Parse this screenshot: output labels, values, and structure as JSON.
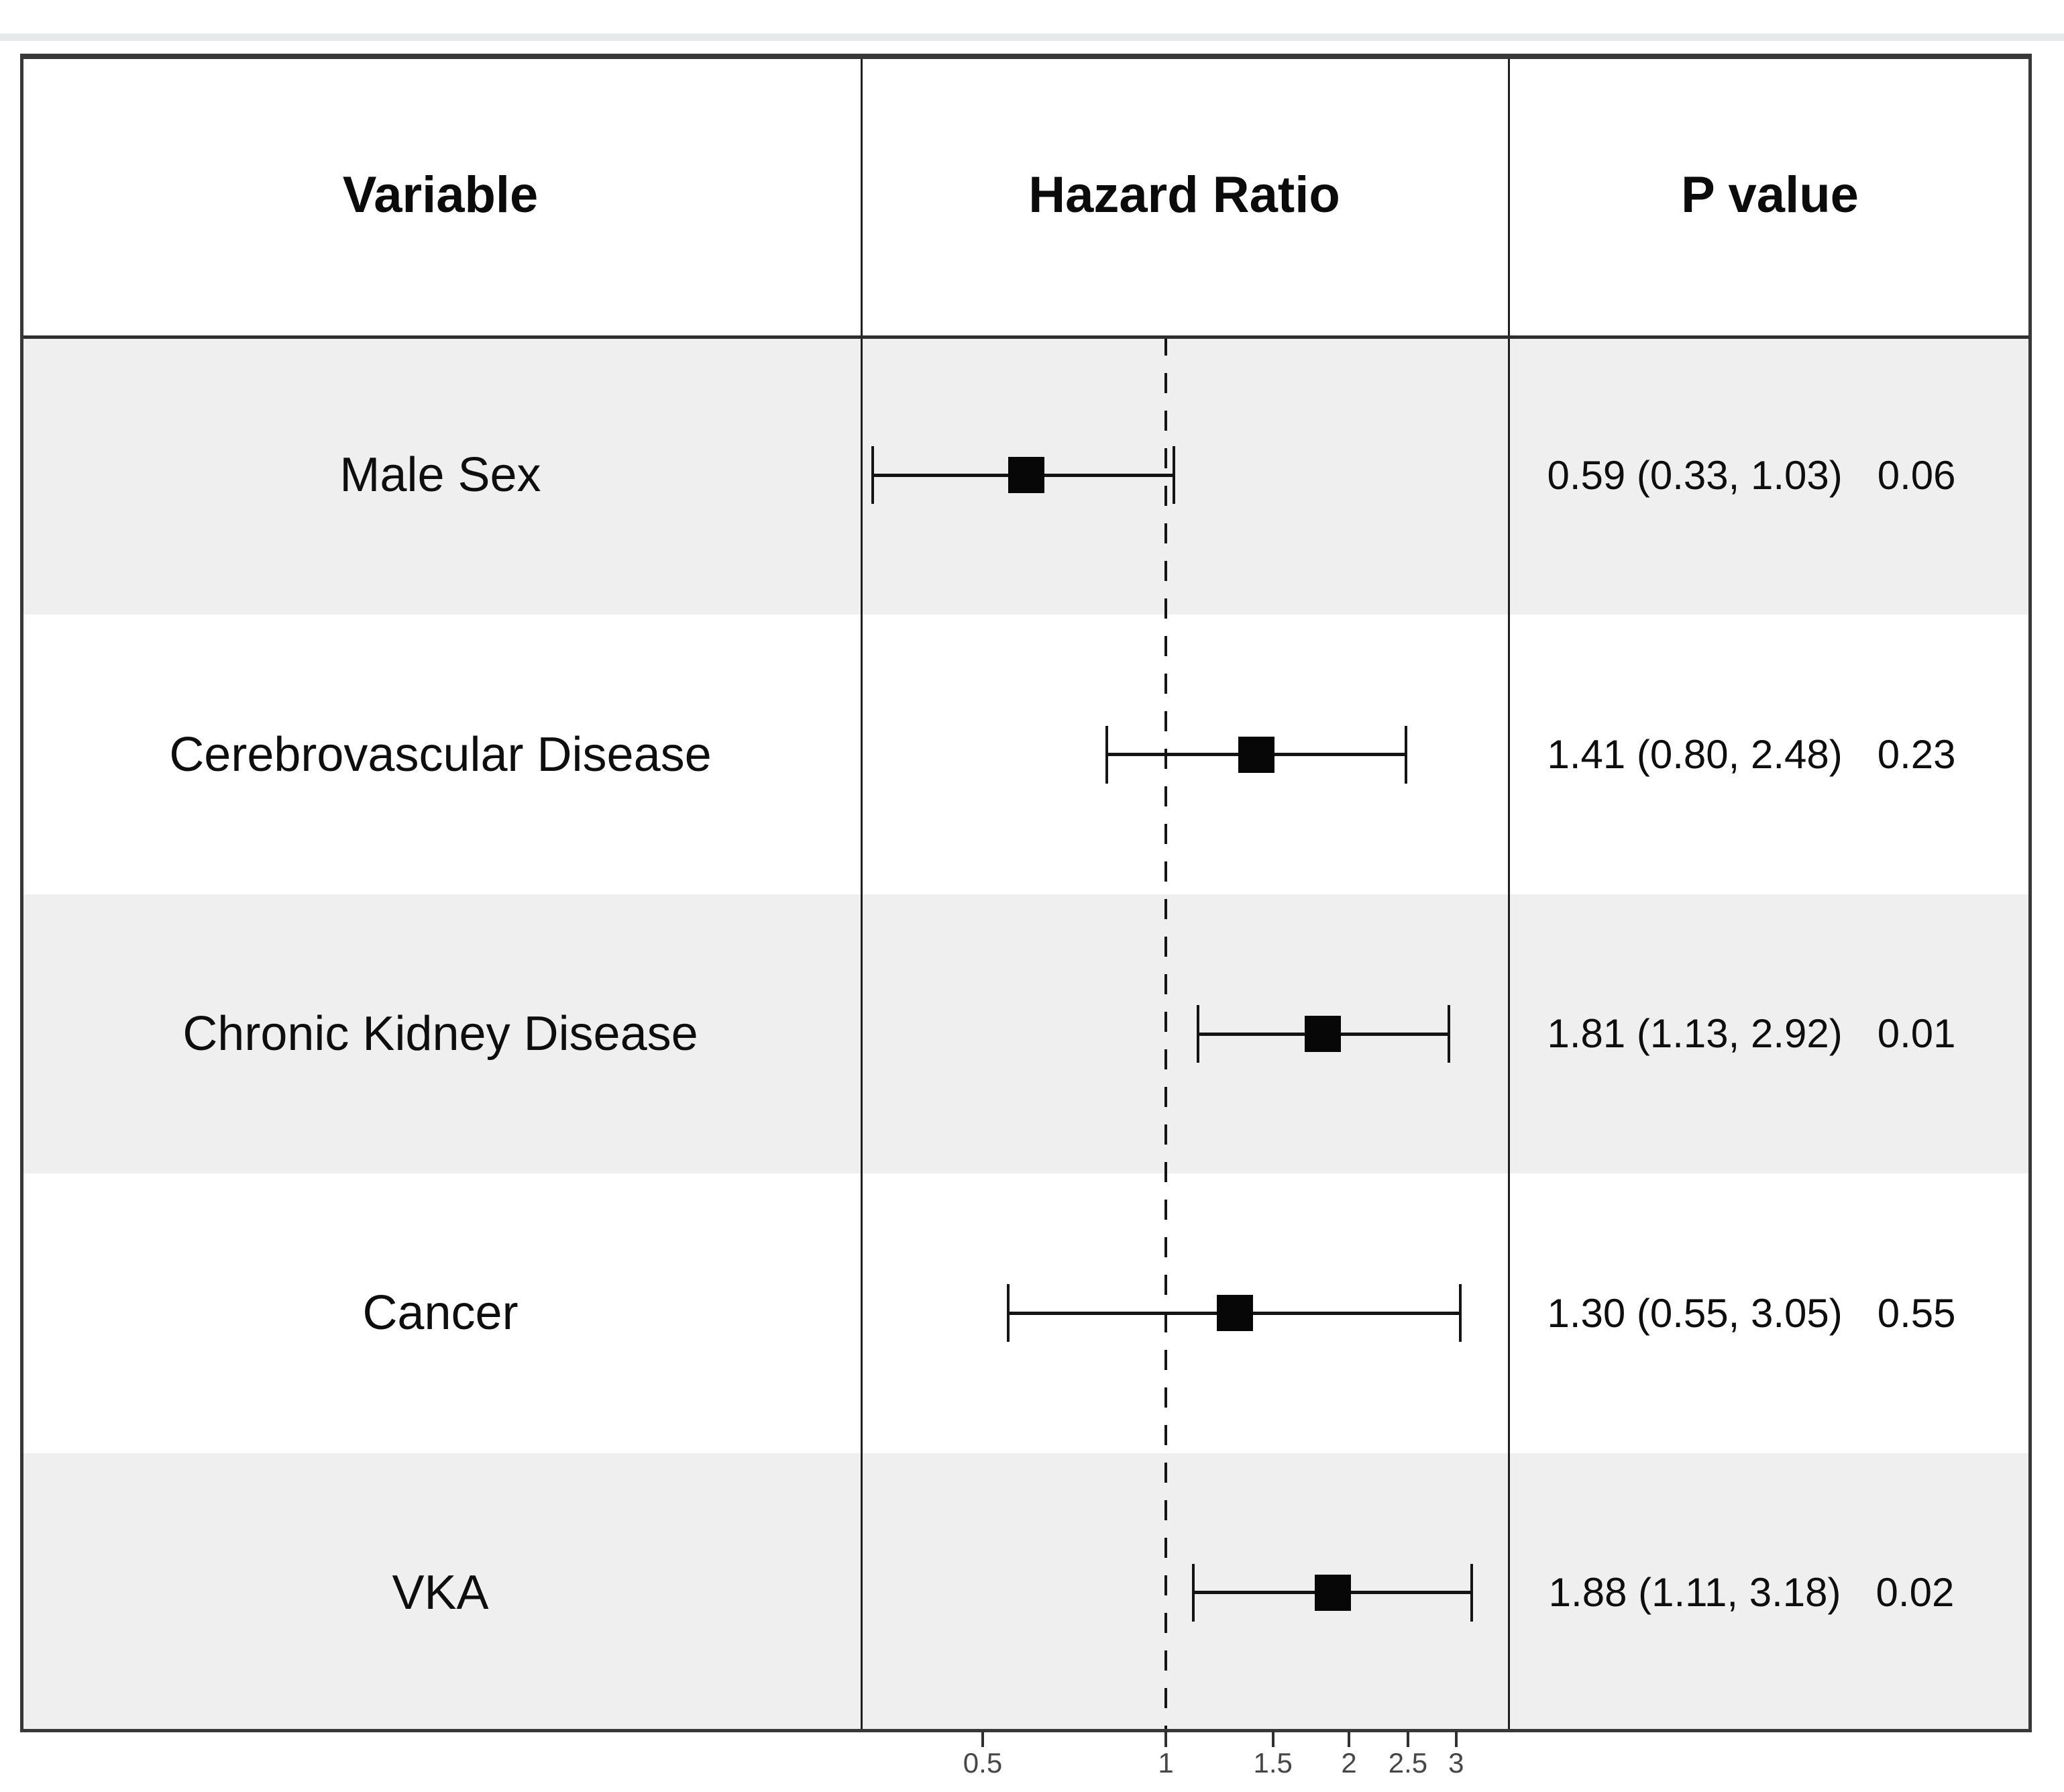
{
  "page": {
    "top_strip_color": "#e6e9e9",
    "background": "#ffffff"
  },
  "table": {
    "headers": [
      {
        "label": "Variable"
      },
      {
        "label": "Hazard Ratio"
      },
      {
        "label": "P value"
      }
    ],
    "stripe_color": "#efefef",
    "border_color": "#383838",
    "marker_color": "#070707"
  },
  "chart_data": {
    "type": "forest",
    "x_scale": "log",
    "x_domain": [
      0.315,
      3.65
    ],
    "x_ticks": [
      "0.5",
      "1",
      "1.5",
      "2",
      "2.5",
      "3"
    ],
    "reference_line": 1,
    "columns": [
      "Variable",
      "Hazard Ratio",
      "P value"
    ],
    "rows": [
      {
        "variable": "Male Sex",
        "hr": 0.59,
        "ci_low": 0.33,
        "ci_high": 1.03,
        "estimate_label": "0.59 (0.33, 1.03)",
        "p": "0.06"
      },
      {
        "variable": "Cerebrovascular Disease",
        "hr": 1.41,
        "ci_low": 0.8,
        "ci_high": 2.48,
        "estimate_label": "1.41 (0.80, 2.48)",
        "p": "0.23"
      },
      {
        "variable": "Chronic Kidney Disease",
        "hr": 1.81,
        "ci_low": 1.13,
        "ci_high": 2.92,
        "estimate_label": "1.81 (1.13, 2.92)",
        "p": "0.01"
      },
      {
        "variable": "Cancer",
        "hr": 1.3,
        "ci_low": 0.55,
        "ci_high": 3.05,
        "estimate_label": "1.30 (0.55, 3.05)",
        "p": "0.55"
      },
      {
        "variable": "VKA",
        "hr": 1.88,
        "ci_low": 1.11,
        "ci_high": 3.18,
        "estimate_label": "1.88 (1.11, 3.18)",
        "p": "0.02"
      }
    ]
  }
}
